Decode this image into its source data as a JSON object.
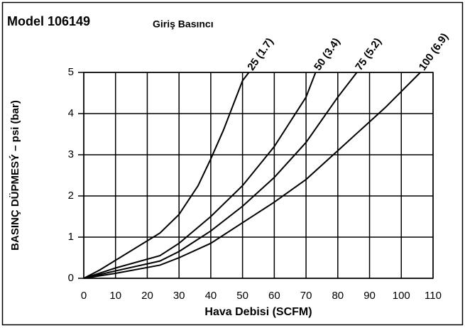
{
  "chart_data": {
    "type": "line",
    "title": "Model 106149",
    "subtitle": "Giriş Basıncı",
    "x_label": "Hava Debisi (SCFM)",
    "y_label": "BASINÇ DÜPMESÝ – psi (bar)",
    "xlim": [
      0,
      110
    ],
    "xticks": [
      0,
      10,
      20,
      30,
      40,
      50,
      60,
      70,
      80,
      90,
      100,
      110
    ],
    "ylim": [
      0,
      5
    ],
    "yticks": [
      0,
      1,
      2,
      3,
      4,
      5
    ],
    "grid": true,
    "series": [
      {
        "name": "25 (1.7)",
        "color": "#000000",
        "x": [
          0,
          5,
          24,
          30,
          36,
          40,
          44,
          47,
          50,
          52
        ],
        "values": [
          0,
          0.2,
          1.1,
          1.55,
          2.25,
          2.9,
          3.6,
          4.2,
          4.8,
          5
        ]
      },
      {
        "name": "50 (3.4)",
        "color": "#000000",
        "x": [
          0,
          10,
          24,
          30,
          40,
          50,
          60,
          70,
          73
        ],
        "values": [
          0,
          0.25,
          0.55,
          0.85,
          1.5,
          2.25,
          3.2,
          4.4,
          5
        ]
      },
      {
        "name": "75 (5.2)",
        "color": "#000000",
        "x": [
          0,
          10,
          24,
          30,
          40,
          50,
          60,
          70,
          80,
          86
        ],
        "values": [
          0,
          0.18,
          0.42,
          0.65,
          1.15,
          1.75,
          2.45,
          3.3,
          4.4,
          5
        ]
      },
      {
        "name": "100 (6.9)",
        "color": "#000000",
        "x": [
          0,
          10,
          24,
          30,
          40,
          50,
          60,
          70,
          80,
          95,
          106
        ],
        "values": [
          0,
          0.12,
          0.32,
          0.5,
          0.85,
          1.35,
          1.85,
          2.4,
          3.1,
          4.15,
          5
        ]
      }
    ]
  }
}
